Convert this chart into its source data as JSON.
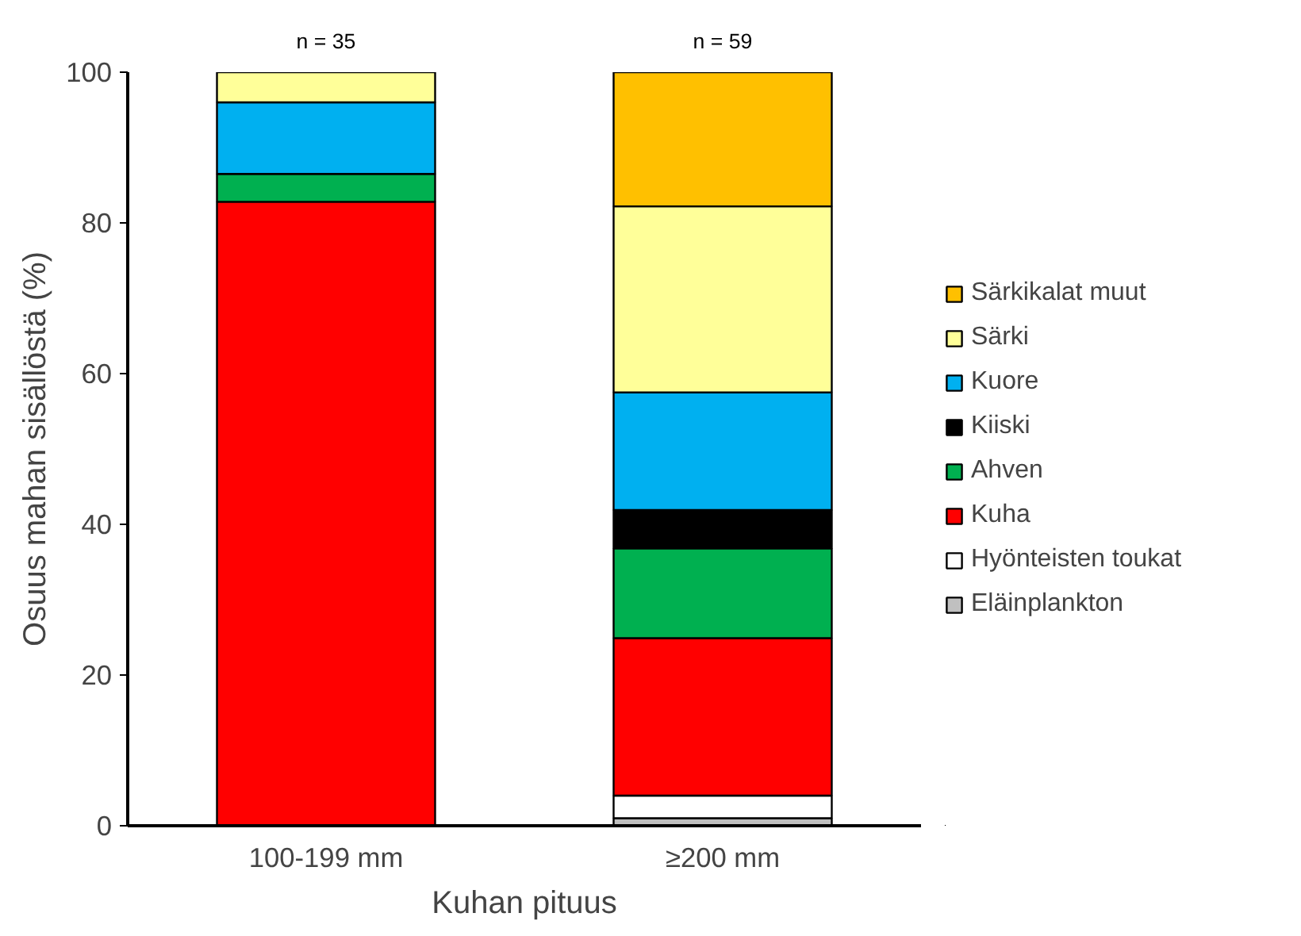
{
  "chart_data": {
    "type": "bar",
    "stacked": true,
    "categories": [
      "100-199 mm",
      "≥200 mm"
    ],
    "xlabel": "Kuhan pituus",
    "ylabel": "Osuus mahan sisällöstä (%)",
    "ylim": [
      0,
      100
    ],
    "yticks": [
      0,
      20,
      40,
      60,
      80,
      100
    ],
    "grid": false,
    "legend": "right",
    "annotations": [
      {
        "text": "n = 35",
        "x": "100-199 mm",
        "y": 100
      },
      {
        "text": "n = 59",
        "x": "≥200 mm",
        "y": 100
      }
    ],
    "series": [
      {
        "name": "Eläinplankton",
        "color": "#c0c0c0",
        "values": [
          0,
          1.0
        ]
      },
      {
        "name": "Hyönteisten toukat",
        "color": "#ffffff",
        "values": [
          0,
          3.0
        ]
      },
      {
        "name": "Kuha",
        "color": "#ff0000",
        "values": [
          82.8,
          20.9
        ]
      },
      {
        "name": "Ahven",
        "color": "#00b050",
        "values": [
          3.7,
          11.9
        ]
      },
      {
        "name": "Kiiski",
        "color": "#000000",
        "values": [
          0,
          5.1
        ]
      },
      {
        "name": "Kuore",
        "color": "#00b0f0",
        "values": [
          9.5,
          15.6
        ]
      },
      {
        "name": "Särki",
        "color": "#ffff99",
        "values": [
          4.0,
          24.7
        ]
      },
      {
        "name": "Särkikalat muut",
        "color": "#ffc000",
        "values": [
          0,
          17.8
        ]
      }
    ]
  }
}
